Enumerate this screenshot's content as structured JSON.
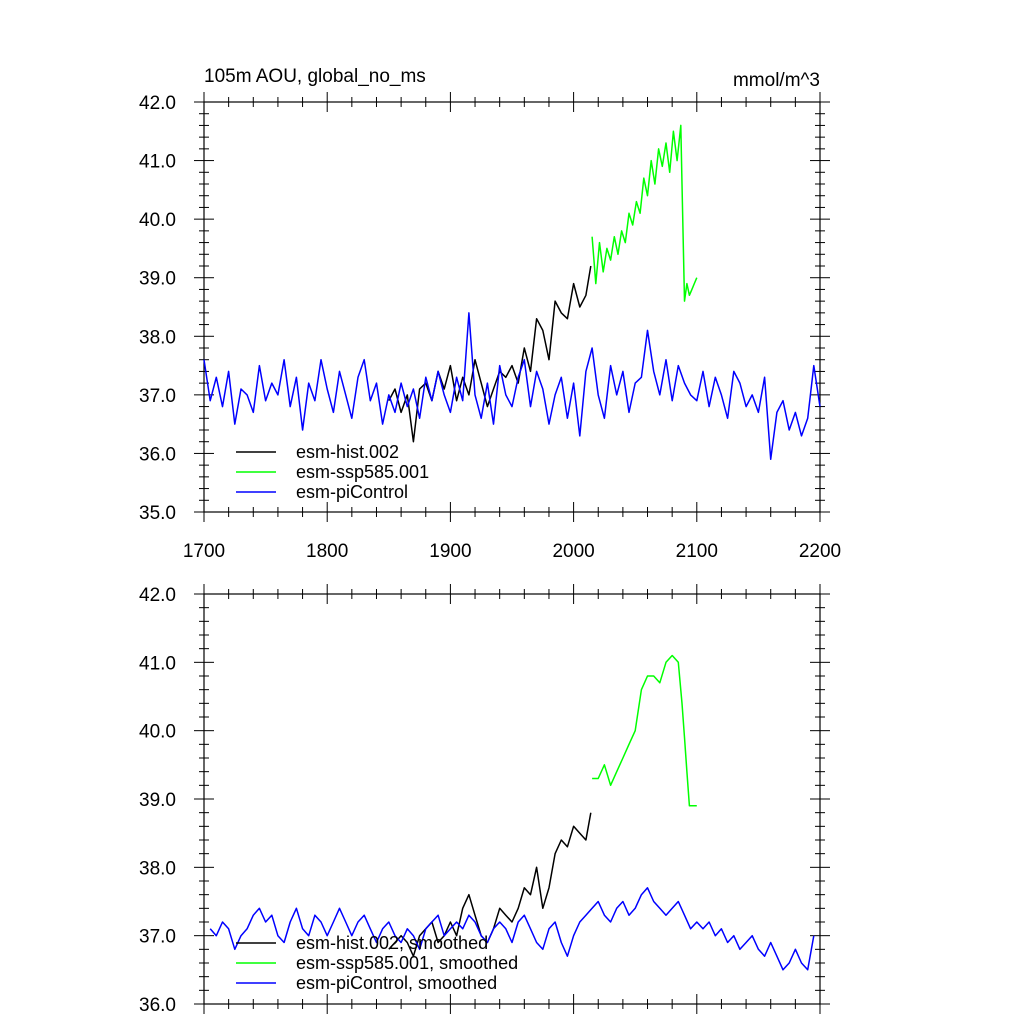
{
  "chart_data": [
    {
      "type": "line",
      "title": "105m AOU, global_no_ms",
      "units": "mmol/m^3",
      "xlim": [
        1700,
        2200
      ],
      "ylim": [
        35.0,
        42.0
      ],
      "x_ticks": [
        "1700",
        "1800",
        "1900",
        "2000",
        "2100",
        "2200"
      ],
      "y_ticks": [
        "35.0",
        "36.0",
        "37.0",
        "38.0",
        "39.0",
        "40.0",
        "41.0",
        "42.0"
      ],
      "legend_position": "lower-left",
      "series": [
        {
          "name": "esm-hist.002",
          "color": "#000000",
          "x": [
            1850,
            1855,
            1860,
            1865,
            1870,
            1875,
            1880,
            1885,
            1890,
            1895,
            1900,
            1905,
            1910,
            1915,
            1920,
            1925,
            1930,
            1935,
            1940,
            1945,
            1950,
            1955,
            1960,
            1965,
            1970,
            1975,
            1980,
            1985,
            1990,
            1995,
            2000,
            2005,
            2010,
            2014
          ],
          "y": [
            36.9,
            37.1,
            36.7,
            37.0,
            36.2,
            37.1,
            37.2,
            36.9,
            37.4,
            37.1,
            37.5,
            36.9,
            37.3,
            37.0,
            37.6,
            37.2,
            36.8,
            37.1,
            37.4,
            37.3,
            37.5,
            37.2,
            37.8,
            37.4,
            38.3,
            38.1,
            37.6,
            38.6,
            38.4,
            38.3,
            38.9,
            38.5,
            38.7,
            39.2
          ]
        },
        {
          "name": "esm-ssp585.001",
          "color": "#00ff00",
          "x": [
            2015,
            2018,
            2021,
            2024,
            2027,
            2030,
            2033,
            2036,
            2039,
            2042,
            2045,
            2048,
            2051,
            2054,
            2057,
            2060,
            2063,
            2066,
            2069,
            2072,
            2075,
            2078,
            2081,
            2084,
            2087,
            2088,
            2090,
            2092,
            2094,
            2096,
            2098,
            2100
          ],
          "y": [
            39.7,
            38.9,
            39.6,
            39.1,
            39.5,
            39.3,
            39.7,
            39.4,
            39.8,
            39.6,
            40.1,
            39.9,
            40.3,
            40.1,
            40.7,
            40.4,
            41.0,
            40.6,
            41.2,
            40.9,
            41.3,
            40.8,
            41.5,
            41.0,
            41.6,
            40.6,
            38.6,
            38.9,
            38.7,
            38.8,
            38.9,
            39.0
          ]
        },
        {
          "name": "esm-piControl",
          "color": "#0000ff",
          "x": [
            1700,
            1705,
            1710,
            1715,
            1720,
            1725,
            1730,
            1735,
            1740,
            1745,
            1750,
            1755,
            1760,
            1765,
            1770,
            1775,
            1780,
            1785,
            1790,
            1795,
            1800,
            1805,
            1810,
            1815,
            1820,
            1825,
            1830,
            1835,
            1840,
            1845,
            1850,
            1855,
            1860,
            1865,
            1870,
            1875,
            1880,
            1885,
            1890,
            1895,
            1900,
            1905,
            1910,
            1915,
            1920,
            1925,
            1930,
            1935,
            1940,
            1945,
            1950,
            1955,
            1960,
            1965,
            1970,
            1975,
            1980,
            1985,
            1990,
            1995,
            2000,
            2005,
            2010,
            2015,
            2020,
            2025,
            2030,
            2035,
            2040,
            2045,
            2050,
            2055,
            2060,
            2065,
            2070,
            2075,
            2080,
            2085,
            2090,
            2095,
            2100,
            2105,
            2110,
            2115,
            2120,
            2125,
            2130,
            2135,
            2140,
            2145,
            2150,
            2155,
            2160,
            2165,
            2170,
            2175,
            2180,
            2185,
            2190,
            2195,
            2200
          ],
          "y": [
            37.6,
            36.9,
            37.3,
            36.8,
            37.4,
            36.5,
            37.1,
            37.0,
            36.7,
            37.5,
            36.9,
            37.2,
            37.0,
            37.6,
            36.8,
            37.3,
            36.4,
            37.2,
            36.9,
            37.6,
            37.1,
            36.7,
            37.4,
            37.0,
            36.6,
            37.3,
            37.6,
            36.9,
            37.2,
            36.5,
            37.0,
            36.7,
            37.2,
            36.8,
            37.1,
            36.6,
            37.3,
            36.9,
            37.4,
            37.0,
            36.7,
            37.3,
            36.9,
            38.4,
            37.0,
            36.6,
            37.2,
            36.5,
            37.5,
            37.0,
            36.8,
            37.3,
            37.6,
            36.8,
            37.4,
            37.1,
            36.5,
            37.0,
            37.3,
            36.6,
            37.2,
            36.3,
            37.4,
            37.8,
            37.0,
            36.6,
            37.5,
            37.0,
            37.4,
            36.7,
            37.2,
            37.3,
            38.1,
            37.4,
            37.0,
            37.6,
            36.9,
            37.5,
            37.2,
            37.0,
            36.9,
            37.4,
            36.8,
            37.3,
            37.0,
            36.6,
            37.4,
            37.2,
            36.8,
            37.0,
            36.7,
            37.3,
            35.9,
            36.7,
            36.9,
            36.4,
            36.7,
            36.3,
            36.6,
            37.5,
            36.8
          ]
        }
      ]
    },
    {
      "type": "line",
      "xlim": [
        1700,
        2200
      ],
      "ylim": [
        36.0,
        42.0
      ],
      "y_ticks": [
        "36.0",
        "37.0",
        "38.0",
        "39.0",
        "40.0",
        "41.0",
        "42.0"
      ],
      "legend_position": "lower-left",
      "series": [
        {
          "name": "esm-hist.002, smoothed",
          "color": "#000000",
          "x": [
            1850,
            1855,
            1860,
            1865,
            1870,
            1875,
            1880,
            1885,
            1890,
            1895,
            1900,
            1905,
            1910,
            1915,
            1920,
            1925,
            1930,
            1935,
            1940,
            1945,
            1950,
            1955,
            1960,
            1965,
            1970,
            1975,
            1980,
            1985,
            1990,
            1995,
            2000,
            2005,
            2010,
            2014
          ],
          "y": [
            36.8,
            36.9,
            37.0,
            36.9,
            36.7,
            37.0,
            37.1,
            37.2,
            36.9,
            37.0,
            37.2,
            37.0,
            37.4,
            37.6,
            37.3,
            37.0,
            36.9,
            37.1,
            37.4,
            37.3,
            37.2,
            37.4,
            37.7,
            37.6,
            38.0,
            37.4,
            37.7,
            38.2,
            38.4,
            38.3,
            38.6,
            38.5,
            38.4,
            38.8
          ]
        },
        {
          "name": "esm-ssp585.001, smoothed",
          "color": "#00ff00",
          "x": [
            2015,
            2020,
            2025,
            2030,
            2035,
            2040,
            2045,
            2050,
            2055,
            2060,
            2065,
            2070,
            2075,
            2080,
            2085,
            2088,
            2090,
            2092,
            2094,
            2096,
            2098,
            2100
          ],
          "y": [
            39.3,
            39.3,
            39.5,
            39.2,
            39.4,
            39.6,
            39.8,
            40.0,
            40.6,
            40.8,
            40.8,
            40.7,
            41.0,
            41.1,
            41.0,
            40.4,
            39.9,
            39.4,
            38.9,
            38.9,
            38.9,
            38.9
          ]
        },
        {
          "name": "esm-piControl, smoothed",
          "color": "#0000ff",
          "x": [
            1705,
            1710,
            1715,
            1720,
            1725,
            1730,
            1735,
            1740,
            1745,
            1750,
            1755,
            1760,
            1765,
            1770,
            1775,
            1780,
            1785,
            1790,
            1795,
            1800,
            1805,
            1810,
            1815,
            1820,
            1825,
            1830,
            1835,
            1840,
            1845,
            1850,
            1855,
            1860,
            1865,
            1870,
            1875,
            1880,
            1885,
            1890,
            1895,
            1900,
            1905,
            1910,
            1915,
            1920,
            1925,
            1930,
            1935,
            1940,
            1945,
            1950,
            1955,
            1960,
            1965,
            1970,
            1975,
            1980,
            1985,
            1990,
            1995,
            2000,
            2005,
            2010,
            2015,
            2020,
            2025,
            2030,
            2035,
            2040,
            2045,
            2050,
            2055,
            2060,
            2065,
            2070,
            2075,
            2080,
            2085,
            2090,
            2095,
            2100,
            2105,
            2110,
            2115,
            2120,
            2125,
            2130,
            2135,
            2140,
            2145,
            2150,
            2155,
            2160,
            2165,
            2170,
            2175,
            2180,
            2185,
            2190,
            2195
          ],
          "y": [
            37.1,
            37.0,
            37.2,
            37.1,
            36.8,
            37.0,
            37.1,
            37.3,
            37.4,
            37.2,
            37.3,
            37.0,
            36.9,
            37.2,
            37.4,
            37.1,
            37.0,
            37.3,
            37.2,
            37.0,
            37.2,
            37.4,
            37.2,
            37.0,
            37.2,
            37.3,
            37.1,
            36.9,
            37.1,
            37.2,
            37.0,
            36.9,
            37.1,
            37.0,
            36.8,
            37.1,
            37.2,
            37.3,
            37.0,
            37.1,
            37.2,
            37.1,
            37.3,
            37.2,
            37.0,
            36.9,
            37.1,
            37.2,
            37.1,
            36.9,
            37.2,
            37.3,
            37.1,
            36.9,
            36.8,
            37.1,
            37.2,
            36.9,
            36.7,
            37.0,
            37.2,
            37.3,
            37.4,
            37.5,
            37.3,
            37.2,
            37.4,
            37.5,
            37.3,
            37.4,
            37.6,
            37.7,
            37.5,
            37.4,
            37.3,
            37.4,
            37.5,
            37.3,
            37.1,
            37.2,
            37.1,
            37.2,
            37.0,
            37.1,
            36.9,
            37.0,
            36.8,
            36.9,
            37.0,
            36.8,
            36.7,
            36.9,
            36.7,
            36.5,
            36.6,
            36.8,
            36.6,
            36.5,
            37.0
          ]
        }
      ]
    }
  ]
}
